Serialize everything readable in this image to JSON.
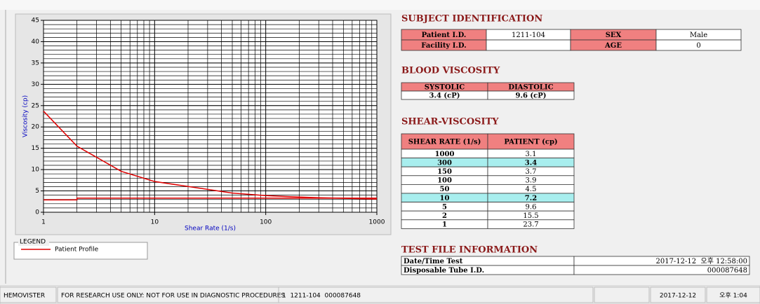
{
  "chart_data": {
    "type": "line",
    "x_label": "Shear Rate (1/s)",
    "y_label": "Viscosity (cp)",
    "xlim": [
      1,
      1000
    ],
    "xticks": [
      1,
      10,
      100,
      1000
    ],
    "xscale": "log",
    "ylim": [
      0,
      45
    ],
    "yticks": [
      0,
      5,
      10,
      15,
      20,
      25,
      30,
      35,
      40,
      45
    ],
    "grid": true,
    "legend_title": "LEGEND",
    "series": [
      {
        "name": "Patient Profile",
        "color": "#e00000",
        "x": [
          1,
          2,
          5,
          10,
          50,
          100,
          150,
          300,
          1000
        ],
        "values": [
          23.7,
          15.5,
          9.6,
          7.2,
          4.5,
          3.9,
          3.7,
          3.4,
          3.1
        ]
      },
      {
        "color": "#e00000",
        "x": [
          1,
          2,
          2,
          1000
        ],
        "values": [
          2.9,
          2.9,
          3.3,
          3.3
        ]
      }
    ]
  },
  "subject": {
    "title": "SUBJECT IDENTIFICATION",
    "rows": [
      {
        "label": "Patient I.D.",
        "value": "1211-104",
        "label2": "SEX",
        "value2": "Male"
      },
      {
        "label": "Facility I.D.",
        "label2": "AGE",
        "value2": "0"
      }
    ]
  },
  "blood": {
    "title": "BLOOD VISCOSITY",
    "headers": [
      "SYSTOLIC",
      "DIASTOLIC"
    ],
    "values": [
      "3.4 (cP)",
      "9.6 (cP)"
    ]
  },
  "shear": {
    "title": "SHEAR-VISCOSITY",
    "headers": [
      "SHEAR RATE (1/s)",
      "PATIENT (cp)"
    ],
    "highlight": [
      1,
      5
    ],
    "rows": [
      [
        "1000",
        "3.1"
      ],
      [
        "300",
        "3.4"
      ],
      [
        "150",
        "3.7"
      ],
      [
        "100",
        "3.9"
      ],
      [
        "50",
        "4.5"
      ],
      [
        "10",
        "7.2"
      ],
      [
        "5",
        "9.6"
      ],
      [
        "2",
        "15.5"
      ],
      [
        "1",
        "23.7"
      ]
    ]
  },
  "test_file": {
    "title": "TEST FILE INFORMATION",
    "rows": [
      [
        "Date/Time Test",
        "2017-12-12  오후 12:58:00"
      ],
      [
        "Disposable Tube I.D.",
        "000087648"
      ]
    ]
  },
  "status_bar": [
    "HEMOVISTER",
    "FOR RESEARCH USE ONLY: NOT FOR USE IN DIAGNOSTIC PROCEDURES",
    "1  1211-104  000087648",
    "2017-12-12",
    "오후 1:04"
  ]
}
